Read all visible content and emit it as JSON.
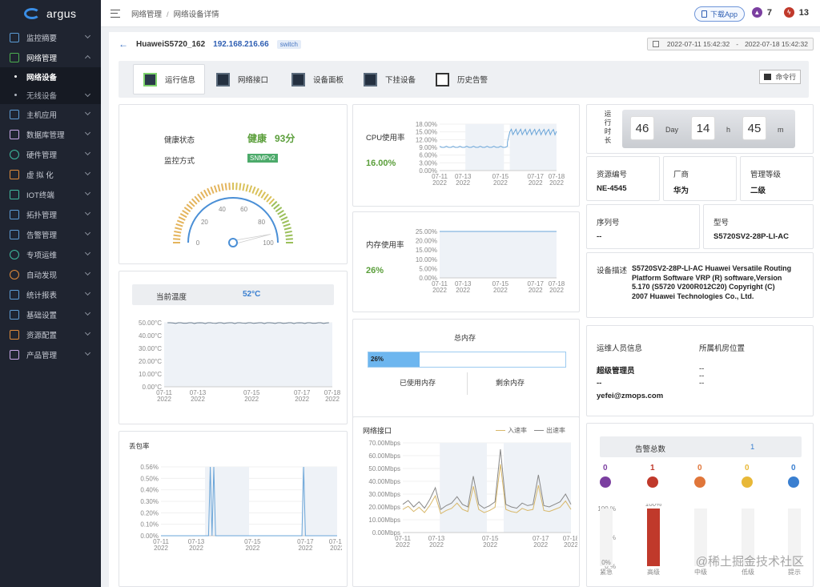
{
  "app": {
    "name": "argus"
  },
  "sidebar": {
    "items": [
      {
        "label": "监控摘要"
      },
      {
        "label": "网络管理"
      },
      {
        "label": "主机应用"
      },
      {
        "label": "数据库管理"
      },
      {
        "label": "硬件管理"
      },
      {
        "label": "虚 拟 化"
      },
      {
        "label": "IOT终端"
      },
      {
        "label": "拓扑管理"
      },
      {
        "label": "告警管理"
      },
      {
        "label": "专项运维"
      },
      {
        "label": "自动发现"
      },
      {
        "label": "统计报表"
      },
      {
        "label": "基础设置"
      },
      {
        "label": "资源配置"
      },
      {
        "label": "产品管理"
      }
    ],
    "subitems": [
      {
        "label": "网络设备"
      },
      {
        "label": "无线设备"
      }
    ]
  },
  "topbar": {
    "breadcrumb": [
      "网络管理",
      "网络设备详情"
    ],
    "download_label": "下载App",
    "alert_count_1": "7",
    "alert_count_2": "13"
  },
  "device": {
    "name": "HuaweiS5720_162",
    "ip": "192.168.216.66",
    "tag": "switch",
    "date_start": "2022-07-11 15:42:32",
    "date_sep": "-",
    "date_end": "2022-07-18 15:42:32"
  },
  "tabs": [
    {
      "label": "运行信息"
    },
    {
      "label": "网络接口"
    },
    {
      "label": "设备面板"
    },
    {
      "label": "下挂设备"
    },
    {
      "label": "历史告警"
    }
  ],
  "command_label": "命令行",
  "health": {
    "status_label": "健康状态",
    "status_value": "健康",
    "score": "93分",
    "method_label": "监控方式",
    "method_value": "SNMPv2",
    "gauge_ticks": [
      "0",
      "20",
      "40",
      "60",
      "80",
      "100"
    ],
    "gauge_value": 93
  },
  "temperature": {
    "label": "当前温度",
    "value": "52°C",
    "y_ticks": [
      "50.00°C",
      "40.00°C",
      "30.00°C",
      "20.00°C",
      "10.00°C",
      "0.00°C"
    ],
    "x_dates": [
      [
        "07-11",
        "2022"
      ],
      [
        "07-13",
        "2022"
      ],
      [
        "07-15",
        "2022"
      ],
      [
        "07-17",
        "2022"
      ],
      [
        "07-18",
        "2022"
      ]
    ]
  },
  "packet_loss": {
    "label": "丢包率",
    "y_ticks": [
      "0.56%",
      "0.50%",
      "0.40%",
      "0.30%",
      "0.20%",
      "0.10%",
      "0.00%"
    ],
    "x_dates": [
      [
        "07-11",
        "2022"
      ],
      [
        "07-13",
        "2022"
      ],
      [
        "07-15",
        "2022"
      ],
      [
        "07-17",
        "2022"
      ],
      [
        "07-18",
        "2022"
      ]
    ]
  },
  "cpu": {
    "label": "CPU使用率",
    "value": "16.00%",
    "y_ticks": [
      "18.00%",
      "15.00%",
      "12.00%",
      "9.00%",
      "6.00%",
      "3.00%",
      "0.00%"
    ],
    "x_dates": [
      [
        "07-11",
        "2022"
      ],
      [
        "07-13",
        "2022"
      ],
      [
        "07-15",
        "2022"
      ],
      [
        "07-17",
        "2022"
      ],
      [
        "07-18",
        "2022"
      ]
    ]
  },
  "memory": {
    "label": "内存使用率",
    "value": "26%",
    "y_ticks": [
      "25.00%",
      "20.00%",
      "15.00%",
      "10.00%",
      "5.00%",
      "0.00%"
    ],
    "x_dates": [
      [
        "07-11",
        "2022"
      ],
      [
        "07-13",
        "2022"
      ],
      [
        "07-15",
        "2022"
      ],
      [
        "07-17",
        "2022"
      ],
      [
        "07-18",
        "2022"
      ]
    ]
  },
  "total_memory": {
    "label": "总内存",
    "used_percent_label": "26%",
    "used_fraction": 0.26,
    "used_label": "已使用内存",
    "free_label": "剩余内存"
  },
  "net_interface": {
    "label": "网络接口",
    "legend_in": "入速率",
    "legend_out": "出速率",
    "y_ticks": [
      "70.00Mbps",
      "60.00Mbps",
      "50.00Mbps",
      "40.00Mbps",
      "30.00Mbps",
      "20.00Mbps",
      "10.00Mbps",
      "0.00Mbps"
    ],
    "x_dates": [
      [
        "07-11",
        "2022"
      ],
      [
        "07-13",
        "2022"
      ],
      [
        "07-15",
        "2022"
      ],
      [
        "07-17",
        "2022"
      ],
      [
        "07-18",
        "2022"
      ]
    ]
  },
  "runtime": {
    "label": "运行时长",
    "days": "46",
    "day_unit": "Day",
    "hours": "14",
    "hour_unit": "h",
    "minutes": "45",
    "minute_unit": "m"
  },
  "asset": {
    "asset_no_label": "资源编号",
    "asset_no": "NE-4545",
    "vendor_label": "厂商",
    "vendor": "华为",
    "level_label": "管理等级",
    "level": "二级",
    "serial_label": "序列号",
    "serial": "--",
    "model_label": "型号",
    "model": "S5720SV2-28P-LI-AC",
    "desc_label": "设备描述",
    "desc": "S5720SV2-28P-LI-AC Huawei Versatile Routing Platform Software VRP (R) software,Version 5.170 (S5720 V200R012C20) Copyright (C) 2007 Huawei Technologies Co., Ltd."
  },
  "ops": {
    "ops_label": "运维人员信息",
    "room_label": "所属机房位置",
    "person": "超级管理员",
    "person_phone": "--",
    "email": "yefei@zmops.com",
    "room_1": "--",
    "room_2": "--",
    "room_3": "--"
  },
  "alarms": {
    "total_label": "告警总数",
    "total": "1",
    "levels": [
      {
        "count": "0",
        "label": "紧急",
        "color": "#7b3fa0"
      },
      {
        "count": "1",
        "label": "高级",
        "color": "#c0392b"
      },
      {
        "count": "0",
        "label": "中级",
        "color": "#e0763a"
      },
      {
        "count": "0",
        "label": "低级",
        "color": "#e8b838"
      },
      {
        "count": "0",
        "label": "提示",
        "color": "#3a7fd0"
      }
    ],
    "y_ticks": [
      "100 %",
      "50 %",
      "0 %"
    ],
    "bar_label_top": "100%",
    "bar_label_zero": "0%"
  },
  "chart_data": [
    {
      "type": "line",
      "title": "CPU使用率",
      "x": [
        "07-11",
        "07-13",
        "07-15",
        "07-17",
        "07-18"
      ],
      "ylim": [
        0,
        18
      ],
      "series": [
        {
          "values": [
            9.0,
            9.0,
            9.5,
            15.0,
            15.0
          ]
        }
      ]
    },
    {
      "type": "line",
      "title": "内存使用率",
      "x": [
        "07-11",
        "07-13",
        "07-15",
        "07-17",
        "07-18"
      ],
      "ylim": [
        0,
        25
      ],
      "series": [
        {
          "values": [
            26,
            26,
            26,
            26,
            26
          ]
        }
      ]
    },
    {
      "type": "line",
      "title": "当前温度",
      "x": [
        "07-11",
        "07-13",
        "07-15",
        "07-17",
        "07-18"
      ],
      "ylim": [
        0,
        50
      ],
      "series": [
        {
          "values": [
            52,
            52,
            52,
            52,
            52
          ]
        }
      ]
    },
    {
      "type": "line",
      "title": "丢包率",
      "x": [
        "07-11",
        "07-13",
        "07-15",
        "07-17",
        "07-18"
      ],
      "ylim": [
        0,
        0.56
      ],
      "series": [
        {
          "values": [
            0,
            0.56,
            0,
            0.56,
            0
          ]
        }
      ]
    },
    {
      "type": "line",
      "title": "网络接口",
      "x": [
        "07-11",
        "07-13",
        "07-15",
        "07-17",
        "07-18"
      ],
      "ylim": [
        0,
        70
      ],
      "series": [
        {
          "name": "入速率",
          "values": [
            20,
            22,
            25,
            20,
            21
          ]
        },
        {
          "name": "出速率",
          "values": [
            18,
            20,
            22,
            20,
            19
          ]
        }
      ]
    },
    {
      "type": "bar",
      "title": "告警总数",
      "categories": [
        "紧急",
        "高级",
        "中级",
        "低级",
        "提示"
      ],
      "values": [
        0,
        100,
        0,
        0,
        0
      ],
      "ylim": [
        0,
        100
      ]
    }
  ]
}
